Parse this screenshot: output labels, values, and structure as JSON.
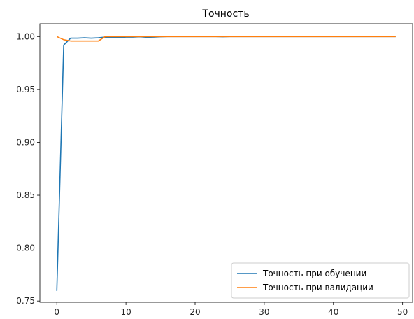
{
  "chart_data": {
    "type": "line",
    "title": "Точность",
    "xlabel": "",
    "ylabel": "",
    "xlim": [
      -2.45,
      51.45
    ],
    "ylim": [
      0.7488,
      1.0121
    ],
    "xticks": [
      0,
      10,
      20,
      30,
      40,
      50
    ],
    "yticks": [
      0.75,
      0.8,
      0.85,
      0.9,
      0.95,
      1.0
    ],
    "ytick_labels": [
      "0.75",
      "0.80",
      "0.85",
      "0.90",
      "0.95",
      "1.00"
    ],
    "xtick_labels": [
      "0",
      "10",
      "20",
      "30",
      "40",
      "50"
    ],
    "grid": false,
    "legend_position": "lower-right",
    "series": [
      {
        "name": "Точность при обучении",
        "color": "#1f77b4",
        "x": [
          0,
          1,
          2,
          3,
          4,
          5,
          6,
          7,
          8,
          9,
          10,
          11,
          12,
          13,
          14,
          15,
          16,
          17,
          18,
          19,
          20,
          21,
          22,
          23,
          24,
          25,
          26,
          27,
          28,
          29,
          30,
          31,
          32,
          33,
          34,
          35,
          36,
          37,
          38,
          39,
          40,
          41,
          42,
          43,
          44,
          45,
          46,
          47,
          48,
          49
        ],
        "y": [
          0.7595,
          0.992,
          0.9985,
          0.9985,
          0.9988,
          0.9985,
          0.9988,
          0.9995,
          0.9993,
          0.999,
          0.9995,
          0.9995,
          0.9998,
          0.9993,
          0.9995,
          0.9998,
          1.0,
          1.0,
          1.0,
          1.0,
          1.0,
          1.0,
          1.0,
          1.0,
          0.9998,
          1.0,
          1.0,
          1.0,
          1.0,
          1.0,
          1.0,
          1.0,
          1.0,
          1.0,
          1.0,
          1.0,
          1.0,
          1.0,
          1.0,
          1.0,
          1.0,
          1.0,
          1.0,
          1.0,
          1.0,
          1.0,
          1.0,
          1.0,
          1.0,
          1.0
        ]
      },
      {
        "name": "Точность при валидации",
        "color": "#ff7f0e",
        "x": [
          0,
          1,
          2,
          3,
          4,
          5,
          6,
          7,
          8,
          9,
          10,
          11,
          12,
          13,
          14,
          15,
          16,
          17,
          18,
          19,
          20,
          21,
          22,
          23,
          24,
          25,
          26,
          27,
          28,
          29,
          30,
          31,
          32,
          33,
          34,
          35,
          36,
          37,
          38,
          39,
          40,
          41,
          42,
          43,
          44,
          45,
          46,
          47,
          48,
          49
        ],
        "y": [
          1.0,
          0.997,
          0.9958,
          0.9958,
          0.9958,
          0.9958,
          0.9958,
          1.0,
          1.0,
          1.0,
          1.0,
          1.0,
          1.0,
          1.0,
          1.0,
          1.0,
          1.0,
          1.0,
          1.0,
          1.0,
          1.0,
          1.0,
          1.0,
          1.0,
          1.0,
          1.0,
          1.0,
          1.0,
          1.0,
          1.0,
          1.0,
          1.0,
          1.0,
          1.0,
          1.0,
          1.0,
          1.0,
          1.0,
          1.0,
          1.0,
          1.0,
          1.0,
          1.0,
          1.0,
          1.0,
          1.0,
          1.0,
          1.0,
          1.0,
          1.0
        ]
      }
    ]
  }
}
